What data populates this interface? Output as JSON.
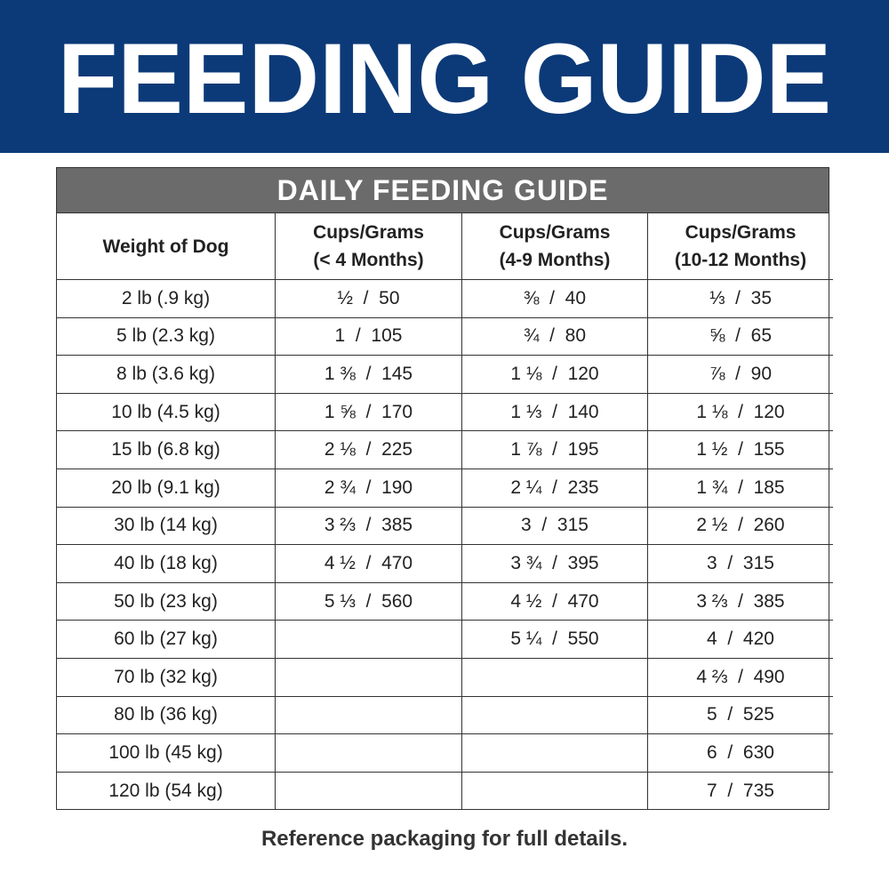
{
  "header": {
    "title": "FEEDING GUIDE"
  },
  "table": {
    "title": "DAILY FEEDING GUIDE",
    "columns": [
      [
        "Weight of Dog"
      ],
      [
        "Cups/Grams",
        "(< 4 Months)"
      ],
      [
        "Cups/Grams",
        "(4-9 Months)"
      ],
      [
        "Cups/Grams",
        "(10-12 Months)"
      ]
    ],
    "rows": [
      [
        "2 lb (.9 kg)",
        "½  /  50",
        "⅜  /  40",
        "⅓  /  35"
      ],
      [
        "5 lb (2.3 kg)",
        "1  /  105",
        "¾  /  80",
        "⅝  /  65"
      ],
      [
        "8 lb (3.6 kg)",
        "1 ⅜  /  145",
        "1 ⅛  /  120",
        "⅞  /  90"
      ],
      [
        "10 lb (4.5 kg)",
        "1 ⅝  /  170",
        "1 ⅓  /  140",
        "1 ⅛  /  120"
      ],
      [
        "15 lb (6.8 kg)",
        "2 ⅛  /  225",
        "1 ⅞  /  195",
        "1 ½  /  155"
      ],
      [
        "20 lb (9.1 kg)",
        "2 ¾  /  190",
        "2 ¼  /  235",
        "1 ¾  /  185"
      ],
      [
        "30 lb (14 kg)",
        "3 ⅔  /  385",
        "3  /  315",
        "2 ½  /  260"
      ],
      [
        "40 lb (18 kg)",
        "4 ½  /  470",
        "3 ¾  /  395",
        "3  /  315"
      ],
      [
        "50 lb (23 kg)",
        "5 ⅓  /  560",
        "4 ½  /  470",
        "3 ⅔  /  385"
      ],
      [
        "60 lb (27 kg)",
        null,
        "5 ¼  /  550",
        "4  /  420"
      ],
      [
        "70 lb (32 kg)",
        null,
        null,
        "4 ⅔  /  490"
      ],
      [
        "80 lb (36 kg)",
        null,
        null,
        "5  /  525"
      ],
      [
        "100 lb (45 kg)",
        null,
        null,
        "6  /  630"
      ],
      [
        "120 lb (54 kg)",
        null,
        null,
        "7  /  735"
      ]
    ]
  },
  "footer": {
    "note": "Reference packaging for full details."
  }
}
